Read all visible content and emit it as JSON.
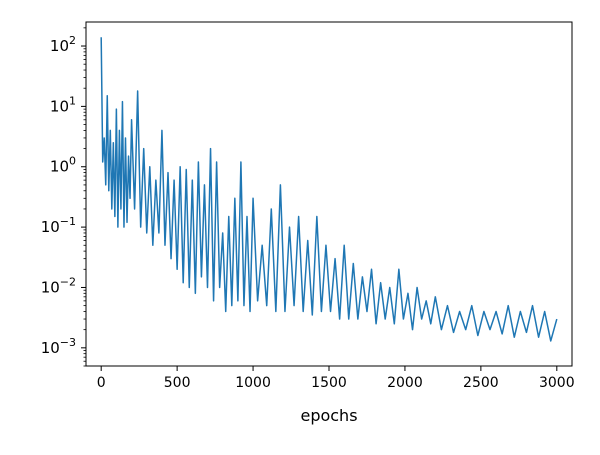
{
  "chart_data": {
    "type": "line",
    "title": "",
    "xlabel": "epochs",
    "ylabel": "",
    "xlim": [
      -100,
      3100
    ],
    "ylim": [
      0.0005,
      250
    ],
    "yscale": "log",
    "grid": false,
    "legend": "none",
    "xticks": [
      0,
      500,
      1000,
      1500,
      2000,
      2500,
      3000
    ],
    "xtick_labels": [
      "0",
      "500",
      "1000",
      "1500",
      "2000",
      "2500",
      "3000"
    ],
    "yticks": [
      0.001,
      0.01,
      0.1,
      1,
      10,
      100
    ],
    "ytick_labels": [
      {
        "base": "10",
        "exp": "−3"
      },
      {
        "base": "10",
        "exp": "−2"
      },
      {
        "base": "10",
        "exp": "−1"
      },
      {
        "base": "10",
        "exp": "0"
      },
      {
        "base": "10",
        "exp": "1"
      },
      {
        "base": "10",
        "exp": "2"
      }
    ],
    "series": [
      {
        "color": "#1f77b4",
        "x": [
          0,
          10,
          20,
          30,
          40,
          50,
          60,
          70,
          80,
          90,
          100,
          110,
          120,
          130,
          140,
          150,
          160,
          170,
          180,
          190,
          200,
          220,
          240,
          260,
          280,
          300,
          320,
          340,
          360,
          380,
          400,
          420,
          440,
          460,
          480,
          500,
          520,
          540,
          560,
          580,
          600,
          620,
          640,
          660,
          680,
          700,
          720,
          740,
          760,
          780,
          800,
          820,
          840,
          860,
          880,
          900,
          920,
          940,
          960,
          980,
          1000,
          1030,
          1060,
          1090,
          1120,
          1150,
          1180,
          1210,
          1240,
          1270,
          1300,
          1330,
          1360,
          1390,
          1420,
          1450,
          1480,
          1510,
          1540,
          1570,
          1600,
          1630,
          1660,
          1690,
          1720,
          1750,
          1780,
          1810,
          1840,
          1870,
          1900,
          1930,
          1960,
          1990,
          2020,
          2050,
          2080,
          2110,
          2140,
          2170,
          2200,
          2240,
          2280,
          2320,
          2360,
          2400,
          2440,
          2480,
          2520,
          2560,
          2600,
          2640,
          2680,
          2720,
          2760,
          2800,
          2840,
          2880,
          2920,
          2960,
          3000
        ],
        "y": [
          140,
          1.2,
          3,
          0.5,
          15,
          0.4,
          4,
          0.2,
          2.5,
          0.15,
          9,
          0.1,
          4,
          0.2,
          12,
          0.1,
          3,
          0.12,
          1.5,
          0.3,
          6,
          0.2,
          18,
          0.1,
          2,
          0.08,
          1,
          0.05,
          0.6,
          0.08,
          4,
          0.05,
          0.8,
          0.03,
          0.6,
          0.02,
          1,
          0.012,
          0.9,
          0.01,
          0.6,
          0.008,
          1.2,
          0.015,
          0.5,
          0.01,
          2,
          0.006,
          1.2,
          0.01,
          0.08,
          0.004,
          0.15,
          0.005,
          0.3,
          0.006,
          1.2,
          0.005,
          0.15,
          0.004,
          0.3,
          0.006,
          0.05,
          0.005,
          0.2,
          0.004,
          0.5,
          0.004,
          0.1,
          0.005,
          0.15,
          0.004,
          0.06,
          0.0035,
          0.15,
          0.004,
          0.05,
          0.004,
          0.03,
          0.003,
          0.05,
          0.003,
          0.025,
          0.003,
          0.015,
          0.004,
          0.02,
          0.0025,
          0.012,
          0.003,
          0.01,
          0.0025,
          0.02,
          0.003,
          0.008,
          0.002,
          0.01,
          0.003,
          0.006,
          0.0025,
          0.007,
          0.002,
          0.005,
          0.0018,
          0.004,
          0.002,
          0.005,
          0.0016,
          0.004,
          0.002,
          0.004,
          0.0017,
          0.005,
          0.0015,
          0.004,
          0.0018,
          0.005,
          0.0015,
          0.004,
          0.0013,
          0.003
        ]
      }
    ]
  }
}
